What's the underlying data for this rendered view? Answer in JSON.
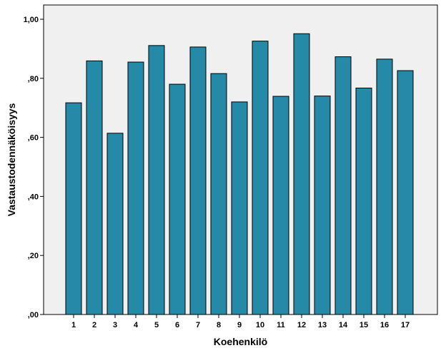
{
  "chart_data": {
    "type": "bar",
    "xlabel": "Koehenkilö",
    "ylabel": "Vastaustodennäköisyys",
    "categories": [
      "1",
      "2",
      "3",
      "4",
      "5",
      "6",
      "7",
      "8",
      "9",
      "10",
      "11",
      "12",
      "13",
      "14",
      "15",
      "16",
      "17"
    ],
    "values": [
      0.717,
      0.859,
      0.614,
      0.855,
      0.911,
      0.78,
      0.906,
      0.816,
      0.72,
      0.926,
      0.739,
      0.951,
      0.74,
      0.873,
      0.767,
      0.865,
      0.826
    ],
    "ylim": [
      0,
      1.0
    ],
    "yticks": [
      0,
      0.2,
      0.4,
      0.6,
      0.8,
      1.0
    ],
    "ytick_labels": [
      ",00",
      ",20",
      ",40",
      ",60",
      ",80",
      "1,00"
    ],
    "grid": false,
    "legend": "none",
    "colors": {
      "bar_fill": "#2589a8",
      "bar_stroke": "#000000",
      "plot_background": "#f0f0f0",
      "axis": "#000000"
    }
  }
}
